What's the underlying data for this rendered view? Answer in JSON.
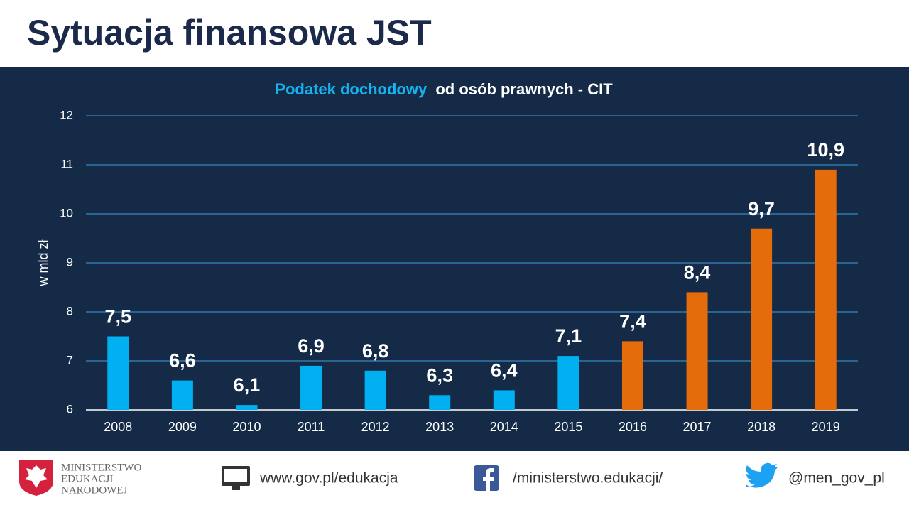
{
  "header": {
    "title": "Sytuacja finansowa JST"
  },
  "chart_data": {
    "type": "bar",
    "title_parts": [
      {
        "text": "Podatek dochodowy",
        "color": "#16b3f0"
      },
      {
        "text": "od osób prawnych - CIT",
        "color": "#ffffff"
      }
    ],
    "y_label": "w mld zł",
    "categories": [
      "2008",
      "2009",
      "2010",
      "2011",
      "2012",
      "2013",
      "2014",
      "2015",
      "2016",
      "2017",
      "2018",
      "2019"
    ],
    "values": [
      7.5,
      6.6,
      6.1,
      6.9,
      6.8,
      6.3,
      6.4,
      7.1,
      7.4,
      8.4,
      9.7,
      10.9
    ],
    "value_labels": [
      "7,5",
      "6,6",
      "6,1",
      "6,9",
      "6,8",
      "6,3",
      "6,4",
      "7,1",
      "7,4",
      "8,4",
      "9,7",
      "10,9"
    ],
    "colors": [
      "#00b0f0",
      "#00b0f0",
      "#00b0f0",
      "#00b0f0",
      "#00b0f0",
      "#00b0f0",
      "#00b0f0",
      "#00b0f0",
      "#e46c0a",
      "#e46c0a",
      "#e46c0a",
      "#e46c0a"
    ],
    "ylim": [
      6,
      12
    ],
    "yticks": [
      6,
      7,
      8,
      9,
      10,
      11,
      12
    ],
    "grid": true
  },
  "footer": {
    "ministry": [
      "MINISTERSTWO",
      "EDUKACJI",
      "NARODOWEJ"
    ],
    "website": "www.gov.pl/edukacja",
    "facebook": "/ministerstwo.edukacji/",
    "twitter": "@men_gov_pl"
  }
}
